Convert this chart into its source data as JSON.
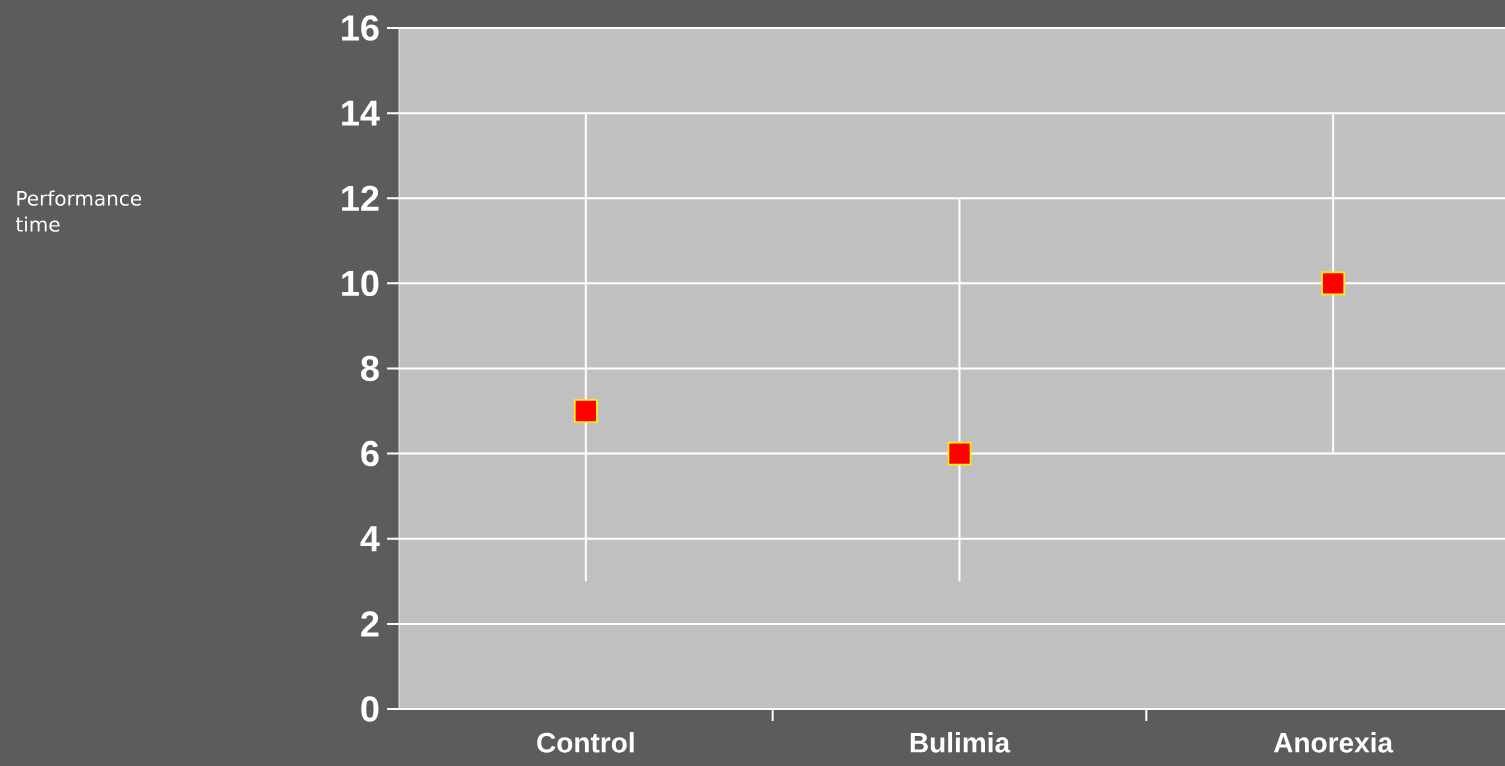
{
  "chart_data": {
    "type": "scatter",
    "annotations": [
      "Performance time"
    ],
    "categories": [
      "Control",
      "Bulimia",
      "Anorexia"
    ],
    "values": [
      7,
      6,
      10
    ],
    "errors": [
      [
        3,
        14
      ],
      [
        3,
        12
      ],
      [
        6,
        14
      ]
    ],
    "color": "#ff0000",
    "marker": "square",
    "ylim": [
      0,
      16
    ],
    "yticks": [
      0,
      2,
      4,
      6,
      8,
      10,
      12,
      14,
      16
    ],
    "grid": "y"
  }
}
